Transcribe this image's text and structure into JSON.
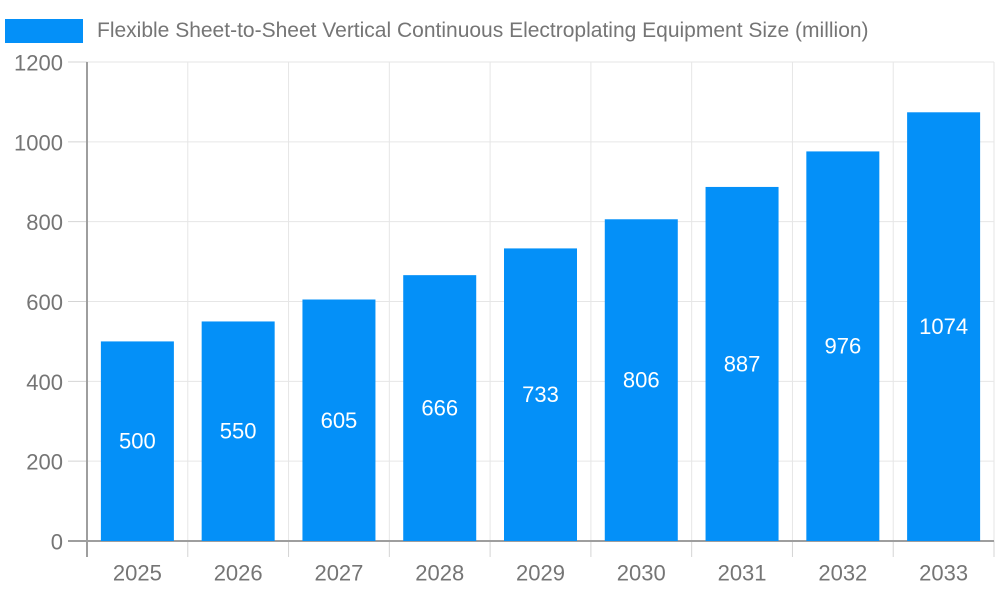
{
  "chart_data": {
    "type": "bar",
    "title": "Flexible Sheet-to-Sheet Vertical Continuous Electroplating Equipment Size (million)",
    "categories": [
      "2025",
      "2026",
      "2027",
      "2028",
      "2029",
      "2030",
      "2031",
      "2032",
      "2033"
    ],
    "values": [
      500,
      550,
      605,
      666,
      733,
      806,
      887,
      976,
      1074
    ],
    "xlabel": "",
    "ylabel": "",
    "ylim": [
      0,
      1200
    ],
    "ytick_step": 200,
    "ytick_labels": [
      "0",
      "200",
      "400",
      "600",
      "800",
      "1000",
      "1200"
    ],
    "grid": "on",
    "legend_position": "top-left",
    "bar_color": "#0490f8",
    "value_label_color": "#ffffff",
    "axis_text_color": "#757575",
    "axis_line_color": "#9e9e9e",
    "grid_color": "#e6e6e6",
    "tick_color": "#d4d4d4"
  }
}
